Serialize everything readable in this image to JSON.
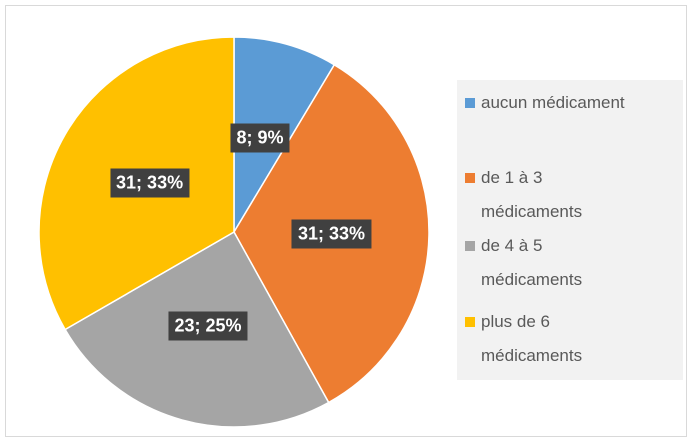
{
  "chart_data": {
    "type": "pie",
    "categories": [
      "aucun médicament",
      "de 1 à 3 médicaments",
      "de 4 à 5 médicaments",
      "plus de 6 médicaments"
    ],
    "values": [
      8,
      31,
      23,
      31
    ],
    "value_labels": [
      "8; 9%",
      "31; 33%",
      "23; 25%",
      "31; 33%"
    ],
    "colors": [
      "#5b9bd5",
      "#ed7d31",
      "#a5a5a5",
      "#ffc000"
    ],
    "legend": "right"
  }
}
